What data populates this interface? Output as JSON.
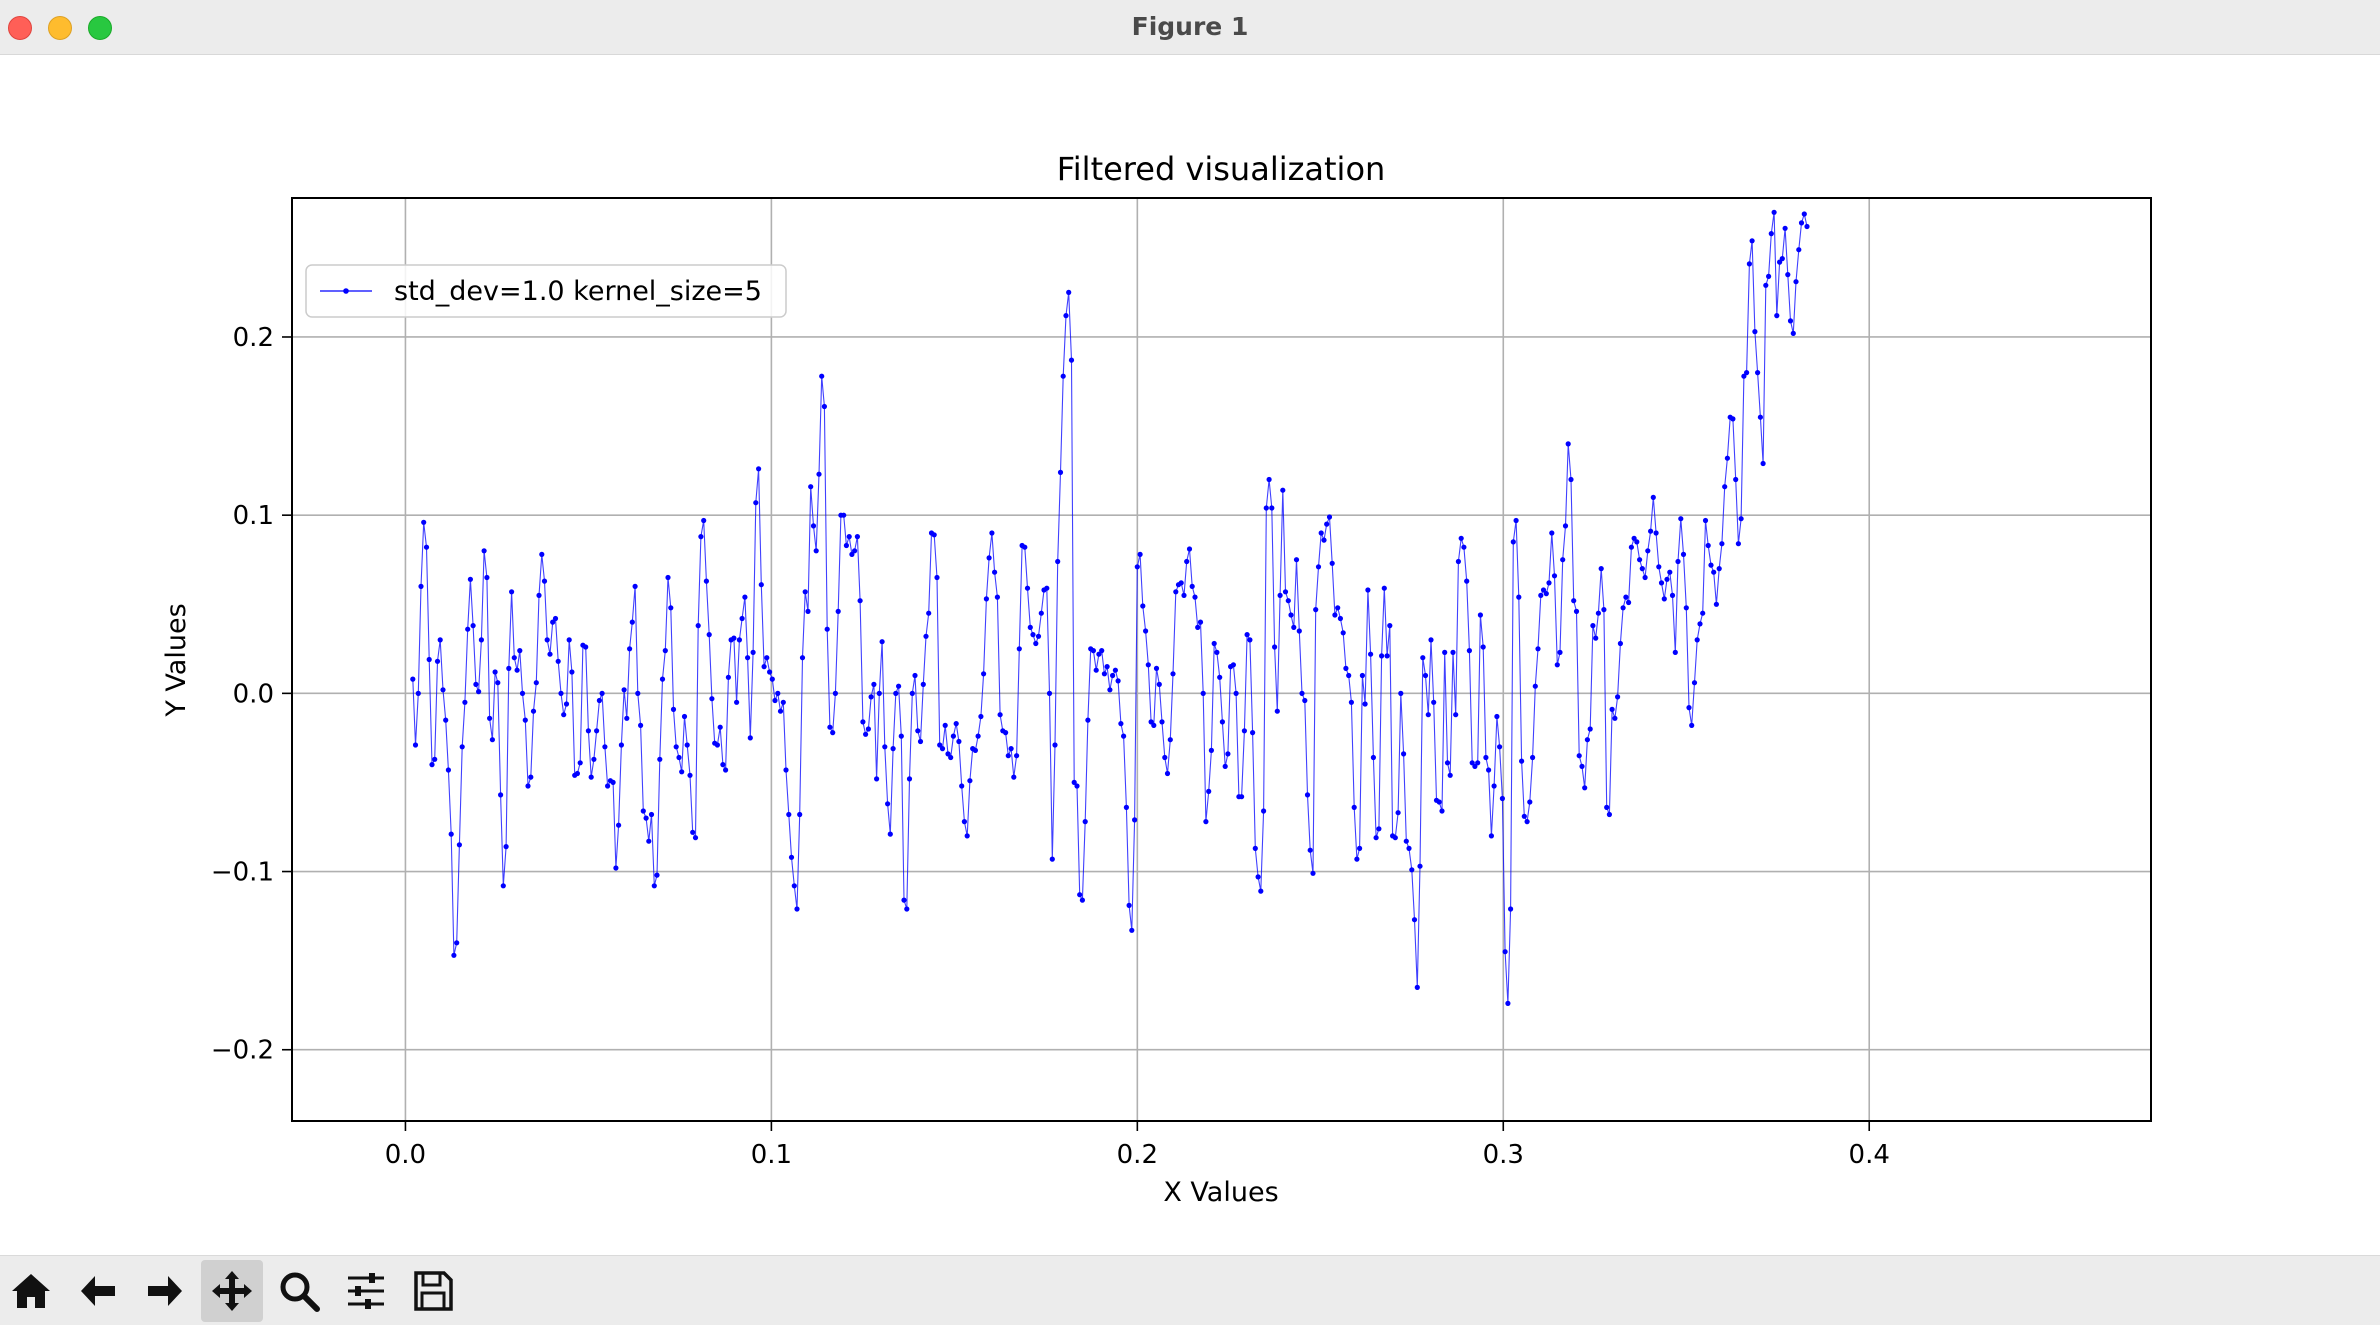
{
  "window": {
    "title": "Figure 1"
  },
  "toolbar": {
    "tools": [
      {
        "name": "home-icon"
      },
      {
        "name": "back-arrow-icon"
      },
      {
        "name": "forward-arrow-icon"
      },
      {
        "name": "pan-move-icon",
        "active": true
      },
      {
        "name": "zoom-magnifier-icon"
      },
      {
        "name": "configure-subplots-icon"
      },
      {
        "name": "save-floppy-icon"
      }
    ]
  },
  "chart_data": {
    "type": "line",
    "title": "Filtered visualization",
    "xlabel": "X Values",
    "ylabel": "Y Values",
    "xlim": [
      -0.031,
      0.477
    ],
    "ylim": [
      -0.24,
      0.278
    ],
    "xticks": [
      0.0,
      0.1,
      0.2,
      0.3,
      0.4
    ],
    "xtick_labels": [
      "0.0",
      "0.1",
      "0.2",
      "0.3",
      "0.4"
    ],
    "yticks": [
      -0.2,
      -0.1,
      0.0,
      0.1,
      0.2
    ],
    "ytick_labels": [
      "−0.2",
      "−0.1",
      "0.0",
      "0.1",
      "0.2"
    ],
    "grid": true,
    "legend": "top-left",
    "series": [
      {
        "name": "std_dev=1.0 kernel_size=5",
        "color": "#0000ff",
        "x_start": 0.002,
        "x_step": 0.00075,
        "values": [
          0.008,
          -0.029,
          0.0,
          0.06,
          0.096,
          0.082,
          0.019,
          -0.04,
          -0.037,
          0.018,
          0.03,
          0.002,
          -0.015,
          -0.043,
          -0.079,
          -0.147,
          -0.14,
          -0.085,
          -0.03,
          -0.005,
          0.036,
          0.064,
          0.038,
          0.005,
          0.001,
          0.03,
          0.08,
          0.065,
          -0.014,
          -0.026,
          0.012,
          0.006,
          -0.057,
          -0.108,
          -0.086,
          0.014,
          0.057,
          0.02,
          0.013,
          0.024,
          0.0,
          -0.015,
          -0.052,
          -0.047,
          -0.01,
          0.006,
          0.055,
          0.078,
          0.063,
          0.03,
          0.022,
          0.04,
          0.042,
          0.018,
          0.0,
          -0.012,
          -0.006,
          0.03,
          0.012,
          -0.046,
          -0.045,
          -0.039,
          0.027,
          0.026,
          -0.021,
          -0.047,
          -0.037,
          -0.021,
          -0.004,
          0.0,
          -0.03,
          -0.052,
          -0.049,
          -0.05,
          -0.098,
          -0.074,
          -0.029,
          0.002,
          -0.014,
          0.025,
          0.04,
          0.06,
          0.0,
          -0.018,
          -0.066,
          -0.07,
          -0.083,
          -0.068,
          -0.108,
          -0.102,
          -0.037,
          0.008,
          0.024,
          0.065,
          0.048,
          -0.009,
          -0.03,
          -0.036,
          -0.044,
          -0.013,
          -0.029,
          -0.046,
          -0.078,
          -0.081,
          0.038,
          0.088,
          0.097,
          0.063,
          0.033,
          -0.003,
          -0.028,
          -0.029,
          -0.019,
          -0.04,
          -0.043,
          0.009,
          0.03,
          0.031,
          -0.005,
          0.03,
          0.042,
          0.054,
          0.02,
          -0.025,
          0.023,
          0.107,
          0.126,
          0.061,
          0.015,
          0.02,
          0.012,
          0.008,
          -0.004,
          0.0,
          -0.01,
          -0.005,
          -0.043,
          -0.068,
          -0.092,
          -0.108,
          -0.121,
          -0.068,
          0.02,
          0.057,
          0.046,
          0.116,
          0.094,
          0.08,
          0.123,
          0.178,
          0.161,
          0.036,
          -0.019,
          -0.022,
          0.0,
          0.046,
          0.1,
          0.1,
          0.083,
          0.088,
          0.078,
          0.08,
          0.088,
          0.052,
          -0.016,
          -0.023,
          -0.02,
          -0.002,
          0.005,
          -0.048,
          0.0,
          0.029,
          -0.03,
          -0.062,
          -0.079,
          -0.031,
          0.0,
          0.004,
          -0.024,
          -0.116,
          -0.121,
          -0.048,
          0.0,
          0.01,
          -0.021,
          -0.027,
          0.005,
          0.032,
          0.045,
          0.09,
          0.089,
          0.065,
          -0.029,
          -0.031,
          -0.018,
          -0.034,
          -0.036,
          -0.024,
          -0.017,
          -0.027,
          -0.052,
          -0.072,
          -0.08,
          -0.049,
          -0.031,
          -0.032,
          -0.024,
          -0.013,
          0.011,
          0.053,
          0.076,
          0.09,
          0.068,
          0.054,
          -0.012,
          -0.021,
          -0.022,
          -0.035,
          -0.031,
          -0.047,
          -0.035,
          0.025,
          0.083,
          0.082,
          0.059,
          0.037,
          0.033,
          0.028,
          0.032,
          0.045,
          0.058,
          0.059,
          0.0,
          -0.093,
          -0.029,
          0.074,
          0.124,
          0.178,
          0.212,
          0.225,
          0.187,
          -0.05,
          -0.052,
          -0.113,
          -0.116,
          -0.072,
          -0.015,
          0.025,
          0.024,
          0.013,
          0.022,
          0.024,
          0.011,
          0.015,
          0.002,
          0.01,
          0.013,
          0.007,
          -0.017,
          -0.024,
          -0.064,
          -0.119,
          -0.133,
          -0.071,
          0.071,
          0.078,
          0.049,
          0.035,
          0.016,
          -0.016,
          -0.018,
          0.014,
          0.005,
          -0.016,
          -0.036,
          -0.045,
          -0.026,
          0.011,
          0.057,
          0.061,
          0.062,
          0.055,
          0.074,
          0.081,
          0.06,
          0.054,
          0.037,
          0.04,
          0.0,
          -0.072,
          -0.055,
          -0.032,
          0.028,
          0.023,
          0.009,
          -0.016,
          -0.041,
          -0.034,
          0.015,
          0.016,
          0.0,
          -0.058,
          -0.058,
          -0.021,
          0.033,
          0.03,
          -0.022,
          -0.087,
          -0.103,
          -0.111,
          -0.066,
          0.104,
          0.12,
          0.104,
          0.026,
          -0.01,
          0.055,
          0.114,
          0.057,
          0.052,
          0.044,
          0.037,
          0.075,
          0.035,
          0.0,
          -0.004,
          -0.057,
          -0.088,
          -0.101,
          0.047,
          0.071,
          0.09,
          0.086,
          0.095,
          0.099,
          0.073,
          0.044,
          0.048,
          0.042,
          0.034,
          0.014,
          0.01,
          -0.005,
          -0.064,
          -0.093,
          -0.087,
          0.01,
          -0.006,
          0.058,
          0.022,
          -0.036,
          -0.081,
          -0.076,
          0.021,
          0.059,
          0.021,
          0.038,
          -0.08,
          -0.081,
          -0.067,
          0.0,
          -0.034,
          -0.083,
          -0.087,
          -0.099,
          -0.127,
          -0.165,
          -0.097,
          0.02,
          0.01,
          -0.012,
          0.03,
          -0.005,
          -0.06,
          -0.061,
          -0.066,
          0.023,
          -0.039,
          -0.046,
          0.023,
          -0.012,
          0.074,
          0.087,
          0.082,
          0.063,
          0.024,
          -0.039,
          -0.041,
          -0.039,
          0.044,
          0.026,
          -0.036,
          -0.043,
          -0.08,
          -0.052,
          -0.013,
          -0.03,
          -0.059,
          -0.145,
          -0.174,
          -0.121,
          0.085,
          0.097,
          0.054,
          -0.038,
          -0.069,
          -0.072,
          -0.061,
          -0.036,
          0.004,
          0.025,
          0.055,
          0.058,
          0.056,
          0.062,
          0.09,
          0.066,
          0.016,
          0.023,
          0.075,
          0.094,
          0.14,
          0.12,
          0.052,
          0.046,
          -0.035,
          -0.041,
          -0.053,
          -0.026,
          -0.02,
          0.038,
          0.031,
          0.045,
          0.07,
          0.047,
          -0.064,
          -0.068,
          -0.009,
          -0.014,
          -0.002,
          0.028,
          0.048,
          0.054,
          0.051,
          0.082,
          0.087,
          0.085,
          0.075,
          0.07,
          0.065,
          0.08,
          0.091,
          0.11,
          0.09,
          0.071,
          0.062,
          0.053,
          0.064,
          0.068,
          0.055,
          0.023,
          0.074,
          0.098,
          0.078,
          0.048,
          -0.008,
          -0.018,
          0.006,
          0.03,
          0.039,
          0.045,
          0.097,
          0.083,
          0.072,
          0.068,
          0.05,
          0.07,
          0.084,
          0.116,
          0.132,
          0.155,
          0.154,
          0.12,
          0.084,
          0.098,
          0.178,
          0.18,
          0.241,
          0.254,
          0.203,
          0.18,
          0.155,
          0.129,
          0.229,
          0.234,
          0.258,
          0.27,
          0.212,
          0.242,
          0.244,
          0.261,
          0.235,
          0.209,
          0.202,
          0.231,
          0.249,
          0.264,
          0.269,
          0.262
        ]
      }
    ]
  }
}
